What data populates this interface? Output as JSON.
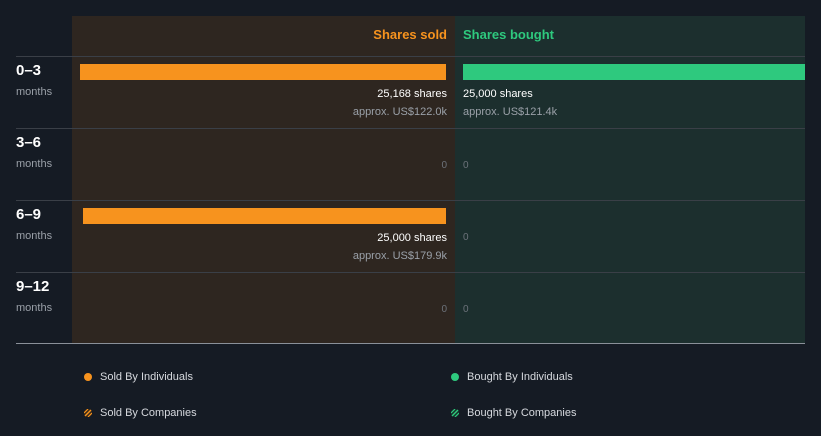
{
  "colors": {
    "sold": "#f7931e",
    "bought": "#2ec97e",
    "sold_panel": "#2e2620",
    "bought_panel": "#1c2f2e",
    "background": "#151b24"
  },
  "headers": {
    "sold": "Shares sold",
    "bought": "Shares bought"
  },
  "chart_data": {
    "type": "bar",
    "categories": [
      "0–3 months",
      "3–6 months",
      "6–9 months",
      "9–12 months"
    ],
    "series": [
      {
        "name": "Shares sold",
        "values": [
          25168,
          0,
          25000,
          0
        ]
      },
      {
        "name": "Shares bought",
        "values": [
          25000,
          0,
          0,
          0
        ]
      }
    ]
  },
  "rows": [
    {
      "period": "0–3",
      "unit": "months",
      "sold": {
        "shares": "25,168 shares",
        "approx": "approx. US$122.0k",
        "fill": 1.0
      },
      "bought": {
        "shares": "25,000 shares",
        "approx": "approx. US$121.4k",
        "fill": 1.0
      }
    },
    {
      "period": "3–6",
      "unit": "months",
      "sold": {
        "zero": "0"
      },
      "bought": {
        "zero": "0"
      }
    },
    {
      "period": "6–9",
      "unit": "months",
      "sold": {
        "shares": "25,000 shares",
        "approx": "approx. US$179.9k",
        "fill": 0.993
      },
      "bought": {
        "zero": "0"
      }
    },
    {
      "period": "9–12",
      "unit": "months",
      "sold": {
        "zero": "0"
      },
      "bought": {
        "zero": "0"
      }
    }
  ],
  "legend": {
    "sold_individuals": "Sold By Individuals",
    "bought_individuals": "Bought By Individuals",
    "sold_companies": "Sold By Companies",
    "bought_companies": "Bought By Companies"
  }
}
